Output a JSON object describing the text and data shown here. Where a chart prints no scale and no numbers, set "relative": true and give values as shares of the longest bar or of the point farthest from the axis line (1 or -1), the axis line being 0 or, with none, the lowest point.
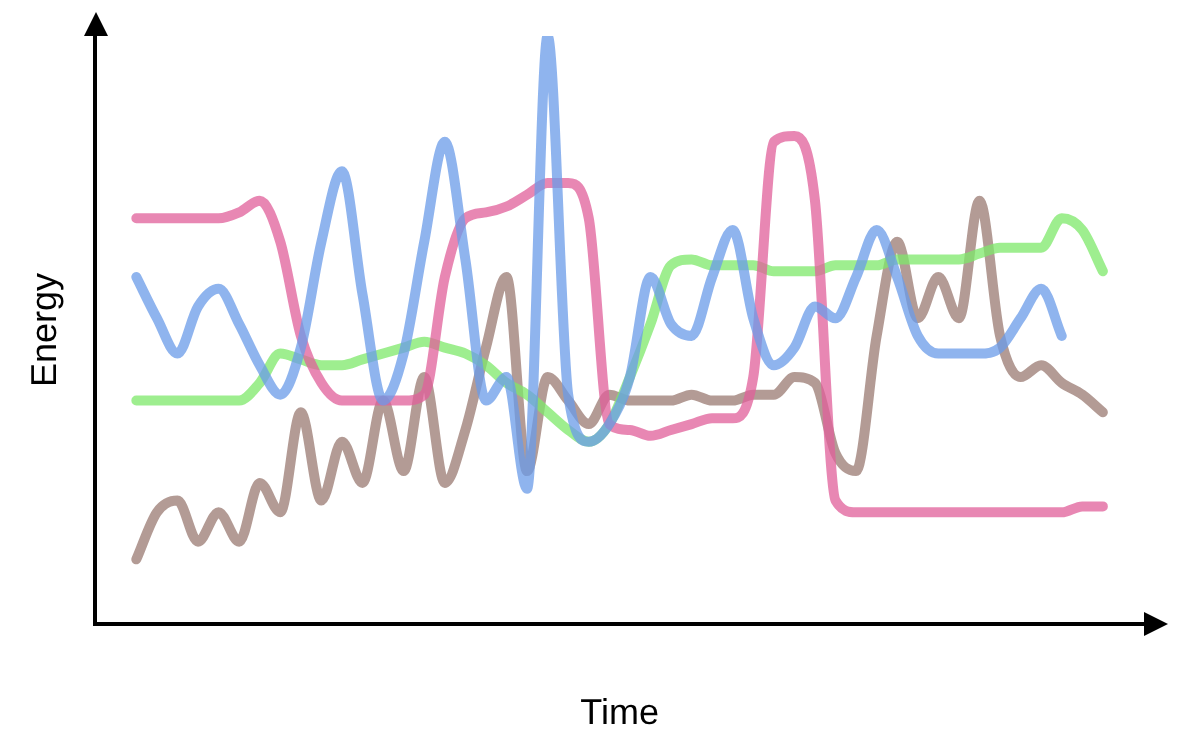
{
  "chart_data": {
    "type": "line",
    "relative": true,
    "xlabel": "Time",
    "ylabel": "Energy",
    "grid": false,
    "legend": false,
    "marker": "none",
    "line_style": "solid",
    "categories": [
      null,
      null,
      null,
      null,
      null,
      null,
      null,
      null,
      null,
      null,
      null,
      null,
      null,
      null,
      null,
      null,
      null,
      null,
      null,
      null,
      null,
      null,
      null,
      null,
      null,
      null,
      null,
      null,
      null,
      null,
      null,
      null,
      null,
      null,
      null,
      null,
      null,
      null,
      null,
      null,
      null,
      null,
      null,
      null,
      null,
      null,
      null,
      null
    ],
    "series": [
      {
        "color": "#6a9be8",
        "values": [
          0.59,
          0.52,
          0.46,
          0.54,
          0.57,
          0.51,
          0.44,
          0.39,
          0.47,
          0.65,
          0.77,
          0.56,
          0.38,
          0.46,
          0.65,
          0.82,
          0.62,
          0.38,
          0.42,
          0.23,
          1,
          0.39,
          0.31,
          0.34,
          0.42,
          0.59,
          0.51,
          0.49,
          0.59,
          0.67,
          0.52,
          0.44,
          0.47,
          0.54,
          0.52,
          0.59,
          0.67,
          0.59,
          0.49,
          0.46,
          0.46,
          0.46,
          0.47,
          0.52,
          0.57,
          0.49,
          null,
          null
        ]
      },
      {
        "color": "#e0609a",
        "values": [
          0.69,
          0.69,
          0.69,
          0.69,
          0.69,
          0.7,
          0.72,
          0.65,
          0.49,
          0.41,
          0.38,
          0.38,
          0.38,
          0.38,
          0.39,
          0.59,
          0.69,
          0.7,
          0.71,
          0.73,
          0.75,
          0.75,
          0.69,
          0.34,
          0.33,
          0.32,
          0.33,
          0.34,
          0.35,
          0.35,
          0.42,
          0.82,
          0.83,
          0.72,
          0.21,
          0.19,
          0.19,
          0.19,
          0.19,
          0.19,
          0.19,
          0.19,
          0.19,
          0.19,
          0.19,
          0.19,
          0.2,
          0.2
        ]
      },
      {
        "color": "#7ee86a",
        "values": [
          0.38,
          0.38,
          0.38,
          0.38,
          0.38,
          0.38,
          0.41,
          0.46,
          0.45,
          0.44,
          0.44,
          0.45,
          0.46,
          0.47,
          0.48,
          0.47,
          0.46,
          0.44,
          0.41,
          0.39,
          0.36,
          0.33,
          0.31,
          0.34,
          0.42,
          0.51,
          0.61,
          0.62,
          0.61,
          0.61,
          0.61,
          0.6,
          0.6,
          0.6,
          0.61,
          0.61,
          0.61,
          0.62,
          0.62,
          0.62,
          0.62,
          0.63,
          0.64,
          0.64,
          0.64,
          0.69,
          0.67,
          0.6
        ]
      },
      {
        "color": "#9a7a72",
        "values": [
          0.11,
          0.19,
          0.21,
          0.14,
          0.19,
          0.14,
          0.24,
          0.19,
          0.36,
          0.21,
          0.31,
          0.24,
          0.38,
          0.26,
          0.42,
          0.24,
          0.33,
          0.47,
          0.59,
          0.26,
          0.42,
          0.38,
          0.34,
          0.39,
          0.38,
          0.38,
          0.38,
          0.39,
          0.38,
          0.38,
          0.39,
          0.39,
          0.42,
          0.41,
          0.29,
          0.26,
          0.49,
          0.65,
          0.52,
          0.59,
          0.52,
          0.72,
          0.49,
          0.42,
          0.44,
          0.41,
          0.39,
          0.36
        ]
      }
    ]
  }
}
